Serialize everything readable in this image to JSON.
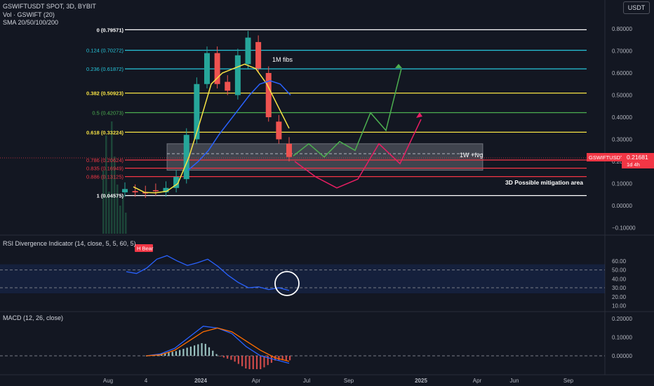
{
  "header": {
    "symbol_line": "GSWIFTUSDT SPOT, 3D, BYBIT",
    "volume_line": "Vol · GSWIFT (20)",
    "sma_line": "SMA 20/50/100/200",
    "currency_button": "USDT"
  },
  "colors": {
    "background": "#131722",
    "price_line": "#2962ff",
    "fib_white": "#ffffff",
    "fib_cyan": "#26c6da",
    "fib_yellow": "#f7e344",
    "fib_green": "#4caf50",
    "fib_red": "#f23645",
    "scenario_green": "#4caf50",
    "scenario_red": "#e91e63",
    "sma_yellow": "#f7e344",
    "sma_blue": "#2962ff",
    "rsi_line": "#2962ff",
    "macd_line": "#2962ff",
    "signal_line": "#ff6d00",
    "badge_red": "#f23645"
  },
  "chart_data": [
    {
      "type": "line",
      "pane": "price",
      "y_axis": {
        "range": [
          -0.12,
          0.82
        ],
        "ticks": [
          -0.1,
          0.0,
          0.1,
          0.2,
          0.3,
          0.4,
          0.5,
          0.6,
          0.7,
          0.8
        ],
        "tick_labels": [
          "−0.10000",
          "0.00000",
          "0.10000",
          "0.20000",
          "0.30000",
          "0.40000",
          "0.50000",
          "0.60000",
          "0.70000",
          "0.80000"
        ]
      },
      "x_axis": {
        "tick_labels": [
          "Aug",
          "4",
          "2024",
          "Apr",
          "Jul",
          "Sep",
          "2025",
          "Apr",
          "Jun",
          "Sep"
        ]
      },
      "fib_levels": [
        {
          "label": "0 (0.79571)",
          "value": 0.79571,
          "color": "white"
        },
        {
          "label": "0.124 (0.70272)",
          "value": 0.70272,
          "color": "cyan"
        },
        {
          "label": "0.236 (0.61872)",
          "value": 0.61872,
          "color": "cyan"
        },
        {
          "label": "0.382 (0.50923)",
          "value": 0.50923,
          "color": "yellow"
        },
        {
          "label": "0.5 (0.42073)",
          "value": 0.42073,
          "color": "green"
        },
        {
          "label": "0.618 (0.33224)",
          "value": 0.33224,
          "color": "yellow"
        },
        {
          "label": "0.786 (0.20624)",
          "value": 0.20624,
          "color": "red"
        },
        {
          "label": "0.835 (0.16949)",
          "value": 0.16949,
          "color": "red"
        },
        {
          "label": "0.886 (0.13125)",
          "value": 0.13125,
          "color": "red"
        },
        {
          "label": "1 (0.04575)",
          "value": 0.04575,
          "color": "white"
        }
      ],
      "price_series": [
        [
          0.06,
          0.075
        ],
        [
          0.066,
          0.06
        ],
        [
          0.06,
          0.055
        ],
        [
          0.07,
          0.065
        ],
        [
          0.06,
          0.08
        ],
        [
          0.08,
          0.13
        ],
        [
          0.12,
          0.32
        ],
        [
          0.3,
          0.55
        ],
        [
          0.55,
          0.69
        ],
        [
          0.69,
          0.55
        ],
        [
          0.56,
          0.52
        ],
        [
          0.5,
          0.68
        ],
        [
          0.64,
          0.76
        ],
        [
          0.74,
          0.62
        ],
        [
          0.6,
          0.4
        ],
        [
          0.38,
          0.3
        ],
        [
          0.28,
          0.22
        ]
      ],
      "sma_yellow": [
        0.085,
        0.06,
        0.058,
        0.065,
        0.1,
        0.22,
        0.38,
        0.55,
        0.6,
        0.62,
        0.64,
        0.62,
        0.55,
        0.45,
        0.35
      ],
      "sma_blue": [
        0.16,
        0.2,
        0.25,
        0.32,
        0.38,
        0.44,
        0.5,
        0.55,
        0.565,
        0.55,
        0.5
      ],
      "zone": {
        "label": "1W +fvg",
        "top": 0.28,
        "bottom": 0.16
      },
      "mitigation_label": "3D Possible mitigation area",
      "annotation_fibs": "1M fibs",
      "green_path": [
        0.225,
        0.28,
        0.22,
        0.29,
        0.25,
        0.42,
        0.34,
        0.62
      ],
      "red_path": [
        0.2,
        0.13,
        0.08,
        0.12,
        0.28,
        0.19,
        0.39
      ],
      "last_price": {
        "symbol": "GSWIFTUSDT",
        "value": "0.21681",
        "countdown": "1d 4h"
      }
    },
    {
      "type": "line",
      "pane": "rsi",
      "title": "RSI Divergence Indicator (14, close, 5, 5, 60, 5)",
      "y_axis": {
        "range": [
          8,
          65
        ],
        "ticks": [
          10,
          20,
          30,
          40,
          50,
          60
        ],
        "tick_labels": [
          "10.00",
          "20.00",
          "30.00",
          "40.00",
          "50.00",
          "60.00"
        ]
      },
      "reference_lines": [
        50,
        30
      ],
      "rsi_series": [
        48,
        46,
        52,
        62,
        66,
        60,
        55,
        58,
        62,
        54,
        44,
        36,
        30,
        31,
        28,
        30,
        27
      ],
      "divergence_label": "H Bear"
    },
    {
      "type": "line",
      "pane": "macd",
      "title": "MACD (12, 26, close)",
      "y_axis": {
        "range": [
          -0.06,
          0.21
        ],
        "ticks": [
          0.0,
          0.1,
          0.2
        ],
        "tick_labels": [
          "0.00000",
          "0.10000",
          "0.20000"
        ]
      },
      "macd_series": [
        0.0,
        0.01,
        0.04,
        0.1,
        0.16,
        0.15,
        0.12,
        0.05,
        0.0,
        -0.02,
        -0.04
      ],
      "signal_series": [
        0.0,
        0.005,
        0.03,
        0.08,
        0.13,
        0.15,
        0.13,
        0.08,
        0.03,
        -0.01,
        -0.03
      ]
    }
  ]
}
